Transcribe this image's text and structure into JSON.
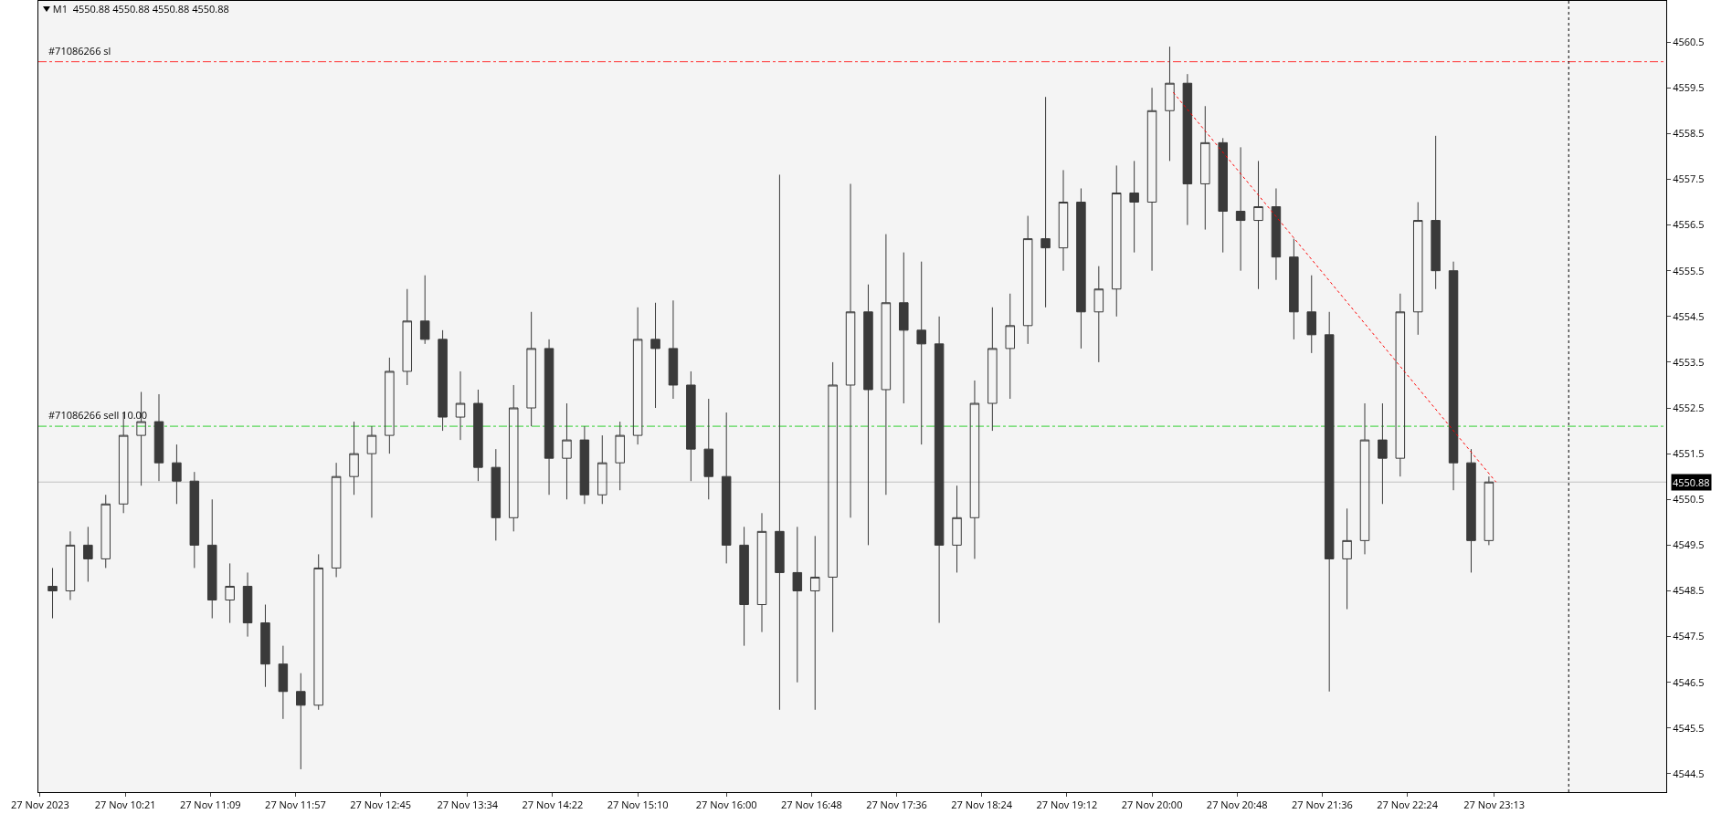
{
  "chart_data": {
    "type": "candlestick",
    "title": "M1  4550.88 4550.88 4550.88 4550.88",
    "color": "#3a3a3a",
    "x": [
      "2023-11-27T09:40",
      "2023-11-27T09:50",
      "2023-11-27T10:00",
      "2023-11-27T10:10",
      "2023-11-27T10:20",
      "2023-11-27T10:30",
      "2023-11-27T10:40",
      "2023-11-27T10:50",
      "2023-11-27T11:00",
      "2023-11-27T11:10",
      "2023-11-27T11:20",
      "2023-11-27T11:30",
      "2023-11-27T11:40",
      "2023-11-27T11:50",
      "2023-11-27T12:00",
      "2023-11-27T12:10",
      "2023-11-27T12:20",
      "2023-11-27T12:30",
      "2023-11-27T12:40",
      "2023-11-27T12:50",
      "2023-11-27T13:00",
      "2023-11-27T13:10",
      "2023-11-27T13:20",
      "2023-11-27T13:30",
      "2023-11-27T13:40",
      "2023-11-27T13:50",
      "2023-11-27T14:00",
      "2023-11-27T14:10",
      "2023-11-27T14:20",
      "2023-11-27T14:30",
      "2023-11-27T14:40",
      "2023-11-27T14:50",
      "2023-11-27T15:00",
      "2023-11-27T15:10",
      "2023-11-27T15:20",
      "2023-11-27T15:30",
      "2023-11-27T15:40",
      "2023-11-27T15:50",
      "2023-11-27T16:00",
      "2023-11-27T16:10",
      "2023-11-27T16:20",
      "2023-11-27T16:30",
      "2023-11-27T16:40",
      "2023-11-27T16:50",
      "2023-11-27T17:00",
      "2023-11-27T17:10",
      "2023-11-27T17:20",
      "2023-11-27T17:30",
      "2023-11-27T17:40",
      "2023-11-27T17:50",
      "2023-11-27T18:00",
      "2023-11-27T18:10",
      "2023-11-27T18:20",
      "2023-11-27T18:30",
      "2023-11-27T18:40",
      "2023-11-27T18:50",
      "2023-11-27T19:00",
      "2023-11-27T19:10",
      "2023-11-27T19:20",
      "2023-11-27T19:30",
      "2023-11-27T19:40",
      "2023-11-27T19:50",
      "2023-11-27T20:00",
      "2023-11-27T20:10",
      "2023-11-27T20:20",
      "2023-11-27T20:30",
      "2023-11-27T20:40",
      "2023-11-27T20:50",
      "2023-11-27T21:00",
      "2023-11-27T21:10",
      "2023-11-27T21:20",
      "2023-11-27T21:30",
      "2023-11-27T21:40",
      "2023-11-27T21:50",
      "2023-11-27T22:00",
      "2023-11-27T22:10",
      "2023-11-27T22:20",
      "2023-11-27T22:30",
      "2023-11-27T22:40",
      "2023-11-27T22:50",
      "2023-11-27T23:00",
      "2023-11-27T23:10"
    ],
    "ohlc": [
      [
        4548.6,
        4549.0,
        4547.9,
        4548.5
      ],
      [
        4548.5,
        4549.8,
        4548.3,
        4549.5
      ],
      [
        4549.5,
        4549.9,
        4548.7,
        4549.2
      ],
      [
        4549.2,
        4550.6,
        4549.0,
        4550.4
      ],
      [
        4550.4,
        4552.4,
        4550.2,
        4551.9
      ],
      [
        4551.9,
        4552.85,
        4550.8,
        4552.2
      ],
      [
        4552.2,
        4552.8,
        4550.9,
        4551.3
      ],
      [
        4551.3,
        4551.7,
        4550.4,
        4550.9
      ],
      [
        4550.9,
        4551.1,
        4549.0,
        4549.5
      ],
      [
        4549.5,
        4550.5,
        4547.9,
        4548.3
      ],
      [
        4548.3,
        4549.1,
        4547.8,
        4548.6
      ],
      [
        4548.6,
        4548.9,
        4547.5,
        4547.8
      ],
      [
        4547.8,
        4548.2,
        4546.4,
        4546.9
      ],
      [
        4546.9,
        4547.3,
        4545.7,
        4546.3
      ],
      [
        4546.3,
        4546.7,
        4544.6,
        4546.0
      ],
      [
        4546.0,
        4549.3,
        4545.9,
        4549.0
      ],
      [
        4549.0,
        4551.3,
        4548.8,
        4551.0
      ],
      [
        4551.0,
        4552.2,
        4550.6,
        4551.5
      ],
      [
        4551.5,
        4552.1,
        4550.1,
        4551.9
      ],
      [
        4551.9,
        4553.6,
        4551.5,
        4553.3
      ],
      [
        4553.3,
        4555.1,
        4553.0,
        4554.4
      ],
      [
        4554.4,
        4555.4,
        4553.9,
        4554.0
      ],
      [
        4554.0,
        4554.2,
        4552.0,
        4552.3
      ],
      [
        4552.3,
        4553.3,
        4551.8,
        4552.6
      ],
      [
        4552.6,
        4552.9,
        4550.9,
        4551.2
      ],
      [
        4551.2,
        4551.6,
        4549.6,
        4550.1
      ],
      [
        4550.1,
        4553.0,
        4549.8,
        4552.5
      ],
      [
        4552.5,
        4554.6,
        4552.1,
        4553.8
      ],
      [
        4553.8,
        4554.0,
        4550.6,
        4551.4
      ],
      [
        4551.4,
        4552.6,
        4550.5,
        4551.8
      ],
      [
        4551.8,
        4552.1,
        4550.4,
        4550.6
      ],
      [
        4550.6,
        4551.9,
        4550.4,
        4551.3
      ],
      [
        4551.3,
        4552.2,
        4550.7,
        4551.9
      ],
      [
        4551.9,
        4554.7,
        4551.7,
        4554.0
      ],
      [
        4554.0,
        4554.8,
        4552.5,
        4553.8
      ],
      [
        4553.8,
        4554.85,
        4552.7,
        4553.0
      ],
      [
        4553.0,
        4553.3,
        4550.9,
        4551.6
      ],
      [
        4551.6,
        4552.7,
        4550.5,
        4551.0
      ],
      [
        4551.0,
        4552.4,
        4549.1,
        4549.5
      ],
      [
        4549.5,
        4549.9,
        4547.3,
        4548.2
      ],
      [
        4548.2,
        4550.2,
        4547.6,
        4549.8
      ],
      [
        4549.8,
        4557.6,
        4545.9,
        4548.9
      ],
      [
        4548.9,
        4549.9,
        4546.5,
        4548.5
      ],
      [
        4548.5,
        4549.7,
        4545.9,
        4548.8
      ],
      [
        4548.8,
        4553.5,
        4547.6,
        4553.0
      ],
      [
        4553.0,
        4557.4,
        4550.1,
        4554.6
      ],
      [
        4554.6,
        4555.2,
        4549.5,
        4552.9
      ],
      [
        4552.9,
        4556.3,
        4550.6,
        4554.8
      ],
      [
        4554.8,
        4555.9,
        4552.6,
        4554.2
      ],
      [
        4554.2,
        4555.7,
        4551.7,
        4553.9
      ],
      [
        4553.9,
        4554.5,
        4547.8,
        4549.5
      ],
      [
        4549.5,
        4550.8,
        4548.9,
        4550.1
      ],
      [
        4550.1,
        4553.1,
        4549.2,
        4552.6
      ],
      [
        4552.6,
        4554.7,
        4552.0,
        4553.8
      ],
      [
        4553.8,
        4555.0,
        4552.7,
        4554.3
      ],
      [
        4554.3,
        4556.7,
        4553.9,
        4556.2
      ],
      [
        4556.2,
        4559.3,
        4554.7,
        4556.0
      ],
      [
        4556.0,
        4557.7,
        4555.5,
        4557.0
      ],
      [
        4557.0,
        4557.3,
        4553.8,
        4554.6
      ],
      [
        4554.6,
        4555.6,
        4553.5,
        4555.1
      ],
      [
        4555.1,
        4557.8,
        4554.5,
        4557.2
      ],
      [
        4557.2,
        4557.9,
        4555.9,
        4557.0
      ],
      [
        4557.0,
        4559.5,
        4555.5,
        4559.0
      ],
      [
        4559.0,
        4560.4,
        4557.9,
        4559.6
      ],
      [
        4559.6,
        4559.8,
        4556.5,
        4557.4
      ],
      [
        4557.4,
        4559.1,
        4556.4,
        4558.3
      ],
      [
        4558.3,
        4558.4,
        4555.9,
        4556.8
      ],
      [
        4556.8,
        4558.2,
        4555.5,
        4556.6
      ],
      [
        4556.6,
        4557.9,
        4555.1,
        4556.9
      ],
      [
        4556.9,
        4557.3,
        4555.3,
        4555.8
      ],
      [
        4555.8,
        4556.2,
        4554.0,
        4554.6
      ],
      [
        4554.6,
        4555.4,
        4553.7,
        4554.1
      ],
      [
        4554.1,
        4554.6,
        4546.3,
        4549.2
      ],
      [
        4549.2,
        4550.3,
        4548.1,
        4549.6
      ],
      [
        4549.6,
        4552.6,
        4549.3,
        4551.8
      ],
      [
        4551.8,
        4552.6,
        4550.4,
        4551.4
      ],
      [
        4551.4,
        4555.0,
        4551.0,
        4554.6
      ],
      [
        4554.6,
        4557.0,
        4554.1,
        4556.6
      ],
      [
        4556.6,
        4558.45,
        4555.1,
        4555.5
      ],
      [
        4555.5,
        4555.7,
        4550.7,
        4551.3
      ],
      [
        4551.3,
        4551.6,
        4548.9,
        4549.6
      ],
      [
        4549.6,
        4551.0,
        4549.5,
        4550.88
      ]
    ],
    "series": [
      {
        "type": "line",
        "color": "#ff0000",
        "line_style": "dotted",
        "x": [
          "2023-11-27T20:12",
          "2023-11-27T23:14"
        ],
        "values": [
          4559.4,
          4550.88
        ]
      }
    ],
    "xlim": [
      "2023-11-27T09:32",
      "2023-11-28T00:50"
    ],
    "xticks": [
      {
        "value": "2023-11-27T09:33",
        "label": "27 Nov 2023"
      },
      {
        "value": "2023-11-27T10:21",
        "label": "27 Nov 10:21"
      },
      {
        "value": "2023-11-27T11:09",
        "label": "27 Nov 11:09"
      },
      {
        "value": "2023-11-27T11:57",
        "label": "27 Nov 11:57"
      },
      {
        "value": "2023-11-27T12:45",
        "label": "27 Nov 12:45"
      },
      {
        "value": "2023-11-27T13:34",
        "label": "27 Nov 13:34"
      },
      {
        "value": "2023-11-27T14:22",
        "label": "27 Nov 14:22"
      },
      {
        "value": "2023-11-27T15:10",
        "label": "27 Nov 15:10"
      },
      {
        "value": "2023-11-27T16:00",
        "label": "27 Nov 16:00"
      },
      {
        "value": "2023-11-27T16:48",
        "label": "27 Nov 16:48"
      },
      {
        "value": "2023-11-27T17:36",
        "label": "27 Nov 17:36"
      },
      {
        "value": "2023-11-27T18:24",
        "label": "27 Nov 18:24"
      },
      {
        "value": "2023-11-27T19:12",
        "label": "27 Nov 19:12"
      },
      {
        "value": "2023-11-27T20:00",
        "label": "27 Nov 20:00"
      },
      {
        "value": "2023-11-27T20:48",
        "label": "27 Nov 20:48"
      },
      {
        "value": "2023-11-27T21:36",
        "label": "27 Nov 21:36"
      },
      {
        "value": "2023-11-27T22:24",
        "label": "27 Nov 22:24"
      },
      {
        "value": "2023-11-27T23:13",
        "label": "27 Nov 23:13"
      }
    ],
    "ylim": [
      4544.1,
      4561.4
    ],
    "yticks": [
      4544.5,
      4545.5,
      4546.5,
      4547.5,
      4548.5,
      4549.5,
      4550.5,
      4551.5,
      4552.5,
      4553.5,
      4554.5,
      4555.5,
      4556.5,
      4557.5,
      4558.5,
      4559.5,
      4560.5
    ],
    "ref_lines": [
      {
        "axis": "y",
        "value": 4560.07,
        "label": "#71086266 sl",
        "color": "#ff3030",
        "line_style": "dashed"
      },
      {
        "axis": "y",
        "value": 4552.1,
        "label": "#71086266 sell 10.00",
        "color": "#30d030",
        "line_style": "dashed"
      },
      {
        "axis": "y",
        "value": 4550.88,
        "color": "#c0c0c0",
        "line_style": "solid"
      },
      {
        "axis": "x",
        "value": "2023-11-27T23:55",
        "color": "#000000",
        "line_style": "dotted"
      }
    ],
    "annotations": [
      "4550.88"
    ],
    "grid": false
  }
}
